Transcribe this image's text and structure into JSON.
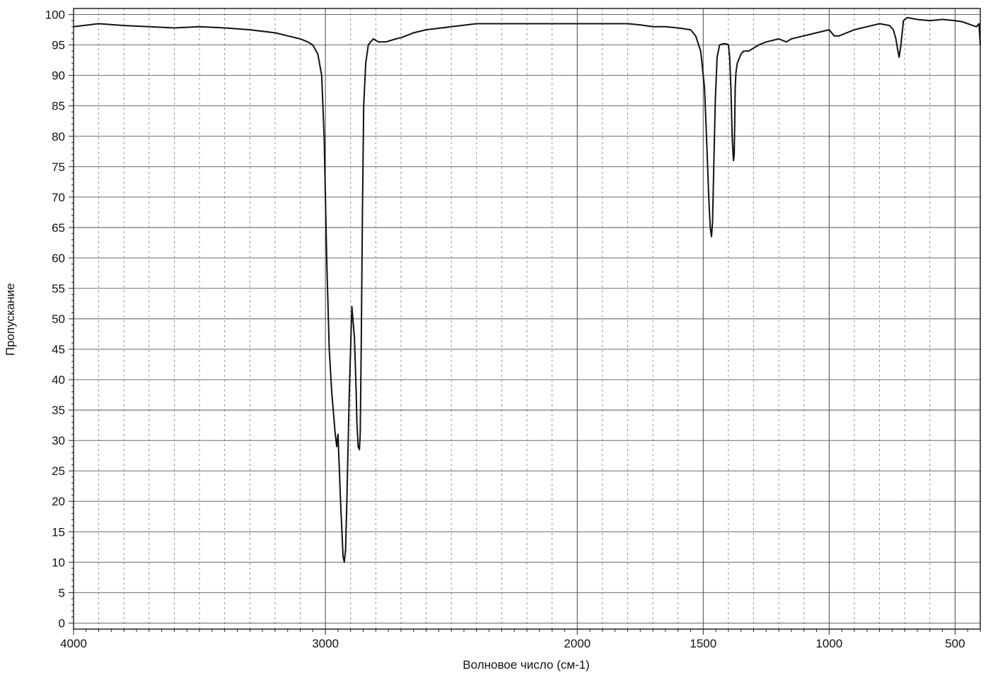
{
  "chart_data": {
    "type": "line",
    "title": "",
    "xlabel": "Волновое число (см-1)",
    "ylabel": "Пропускание",
    "xlim": [
      4000,
      400
    ],
    "ylim": [
      -1,
      101
    ],
    "x_reversed": true,
    "grid": true,
    "x_ticks": [
      4000,
      3000,
      2000,
      1500,
      1000,
      500
    ],
    "x_tick_labels": [
      "4000",
      "3000",
      "2000",
      "1500",
      "1000",
      "500"
    ],
    "y_ticks": [
      0,
      5,
      10,
      15,
      20,
      25,
      30,
      35,
      40,
      45,
      50,
      55,
      60,
      65,
      70,
      75,
      80,
      85,
      90,
      95,
      100
    ],
    "y_tick_labels": [
      "0",
      "5",
      "10",
      "15",
      "20",
      "25",
      "30",
      "35",
      "40",
      "45",
      "50",
      "55",
      "60",
      "65",
      "70",
      "75",
      "80",
      "85",
      "90",
      "95",
      "100"
    ],
    "line_color": "#111111",
    "series": [
      {
        "x": [
          4000,
          3900,
          3800,
          3700,
          3600,
          3500,
          3400,
          3300,
          3200,
          3150,
          3100,
          3070,
          3050,
          3030,
          3015,
          3005,
          2995,
          2985,
          2975,
          2965,
          2962,
          2958,
          2955,
          2950,
          2940,
          2930,
          2925,
          2920,
          2915,
          2905,
          2895,
          2885,
          2878,
          2875,
          2870,
          2865,
          2862,
          2858,
          2853,
          2848,
          2840,
          2830,
          2820,
          2810,
          2790,
          2760,
          2720,
          2700,
          2650,
          2600,
          2500,
          2400,
          2300,
          2200,
          2100,
          2000,
          1900,
          1800,
          1750,
          1700,
          1650,
          1600,
          1550,
          1530,
          1510,
          1495,
          1485,
          1478,
          1472,
          1467,
          1463,
          1458,
          1452,
          1445,
          1435,
          1420,
          1410,
          1400,
          1395,
          1390,
          1385,
          1380,
          1377,
          1375,
          1373,
          1370,
          1365,
          1360,
          1355,
          1350,
          1340,
          1320,
          1300,
          1280,
          1250,
          1200,
          1170,
          1150,
          1100,
          1050,
          1000,
          980,
          960,
          900,
          850,
          800,
          760,
          745,
          735,
          727,
          722,
          715,
          705,
          690,
          650,
          600,
          550,
          500,
          470,
          450,
          430,
          415,
          405,
          400
        ],
        "y": [
          98.0,
          98.5,
          98.2,
          98.0,
          97.8,
          98.0,
          97.8,
          97.5,
          97.0,
          96.5,
          96.0,
          95.5,
          95.0,
          93.5,
          90.0,
          80.0,
          60.0,
          45.0,
          38.0,
          33.0,
          31.5,
          30.0,
          29.0,
          31.0,
          20.0,
          11.0,
          10.0,
          12.0,
          20.0,
          38.0,
          52.0,
          47.0,
          38.0,
          33.0,
          29.0,
          28.5,
          31.0,
          45.0,
          68.0,
          85.0,
          92.0,
          95.0,
          95.5,
          96.0,
          95.5,
          95.5,
          96.0,
          96.2,
          97.0,
          97.5,
          98.0,
          98.5,
          98.5,
          98.5,
          98.5,
          98.5,
          98.5,
          98.5,
          98.3,
          98.0,
          98.0,
          97.8,
          97.5,
          96.5,
          94.0,
          88.0,
          78.0,
          70.0,
          65.0,
          63.5,
          66.0,
          75.0,
          86.0,
          93.0,
          95.0,
          95.2,
          95.2,
          95.0,
          93.0,
          88.0,
          80.0,
          76.0,
          77.0,
          82.0,
          88.0,
          90.5,
          92.0,
          92.5,
          93.0,
          93.5,
          94.0,
          94.0,
          94.5,
          95.0,
          95.5,
          96.0,
          95.5,
          96.0,
          96.5,
          97.0,
          97.5,
          96.5,
          96.5,
          97.5,
          98.0,
          98.5,
          98.2,
          97.5,
          96.0,
          94.0,
          93.0,
          95.0,
          99.0,
          99.5,
          99.2,
          99.0,
          99.2,
          99.0,
          98.8,
          98.5,
          98.2,
          98.0,
          98.5,
          95.0
        ]
      }
    ]
  }
}
